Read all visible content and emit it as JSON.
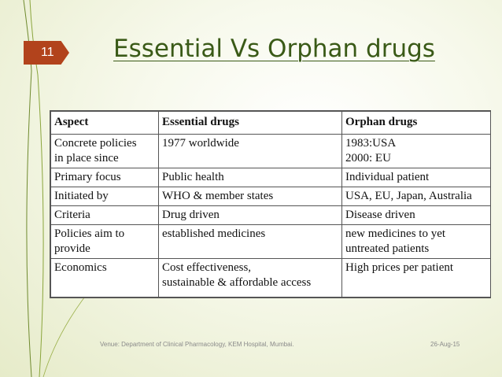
{
  "slide": {
    "number": "11",
    "title": "Essential Vs Orphan drugs",
    "accent_color": "#b2431c",
    "title_color": "#3a5a17"
  },
  "table": {
    "headers": [
      "Aspect",
      "Essential drugs",
      "Orphan drugs"
    ],
    "rows": [
      [
        "Concrete policies\nin place since",
        "1977 worldwide",
        " 1983:USA\n 2000: EU"
      ],
      [
        "Primary focus",
        "Public health",
        "Individual patient"
      ],
      [
        "Initiated by",
        "WHO & member states",
        "USA, EU, Japan, Australia"
      ],
      [
        "Criteria",
        "Drug driven",
        "Disease driven"
      ],
      [
        "Policies aim to\nprovide",
        "established medicines",
        "new medicines to yet\nuntreated patients"
      ],
      [
        "Economics",
        "Cost effectiveness,\nsustainable & affordable access",
        "High prices per patient"
      ]
    ]
  },
  "footer": {
    "venue": "Venue: Department of Clinical Pharmacology, KEM Hospital, Mumbai.",
    "date": "26-Aug-15"
  }
}
